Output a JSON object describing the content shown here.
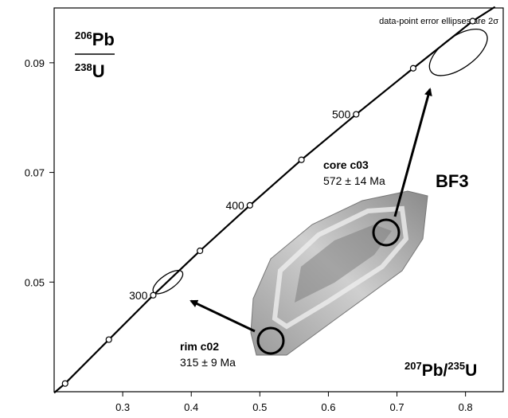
{
  "chart_data": {
    "type": "concordia",
    "note_text": "data-point error ellipses are 2σ",
    "ylabel": {
      "numerator": [
        "206",
        "Pb"
      ],
      "denominator": [
        "238",
        "U"
      ]
    },
    "xlabel": [
      "207",
      "Pb/",
      "235",
      "U"
    ],
    "xlim": [
      0.2,
      0.855
    ],
    "ylim": [
      0.03,
      0.1
    ],
    "xticks": [
      0.3,
      0.4,
      0.5,
      0.6,
      0.7,
      0.8
    ],
    "yticks": [
      0.05,
      0.07,
      0.09
    ],
    "curve": {
      "x": [
        0.2,
        0.216,
        0.2798,
        0.3445,
        0.4127,
        0.4855,
        0.5607,
        0.6405,
        0.7237,
        0.8104,
        0.843
      ],
      "y": [
        0.0298,
        0.0315,
        0.0395,
        0.0476,
        0.0557,
        0.064,
        0.0723,
        0.0806,
        0.089,
        0.0976,
        0.1002
      ]
    },
    "points": {
      "x": [
        0.216,
        0.2798,
        0.3445,
        0.4127,
        0.4855,
        0.5607,
        0.6405,
        0.7237,
        0.8104
      ],
      "y": [
        0.0315,
        0.0395,
        0.0476,
        0.0557,
        0.064,
        0.0723,
        0.0806,
        0.089,
        0.0976
      ]
    },
    "age_labels": [
      {
        "text": "300",
        "x": 0.3445,
        "y": 0.0476
      },
      {
        "text": "400",
        "x": 0.4855,
        "y": 0.064
      },
      {
        "text": "500",
        "x": 0.6405,
        "y": 0.0806
      }
    ],
    "ellipses": [
      {
        "name": "rim c02",
        "x": 0.3659,
        "y": 0.05
      },
      {
        "name": "core c03",
        "x": 0.7896,
        "y": 0.0919
      }
    ],
    "annotations": {
      "sample": "BF3",
      "core_label": "core c03",
      "core_age": "572 ± 14 Ma",
      "rim_label": "rim c02",
      "rim_age": "315 ± 9 Ma"
    }
  }
}
